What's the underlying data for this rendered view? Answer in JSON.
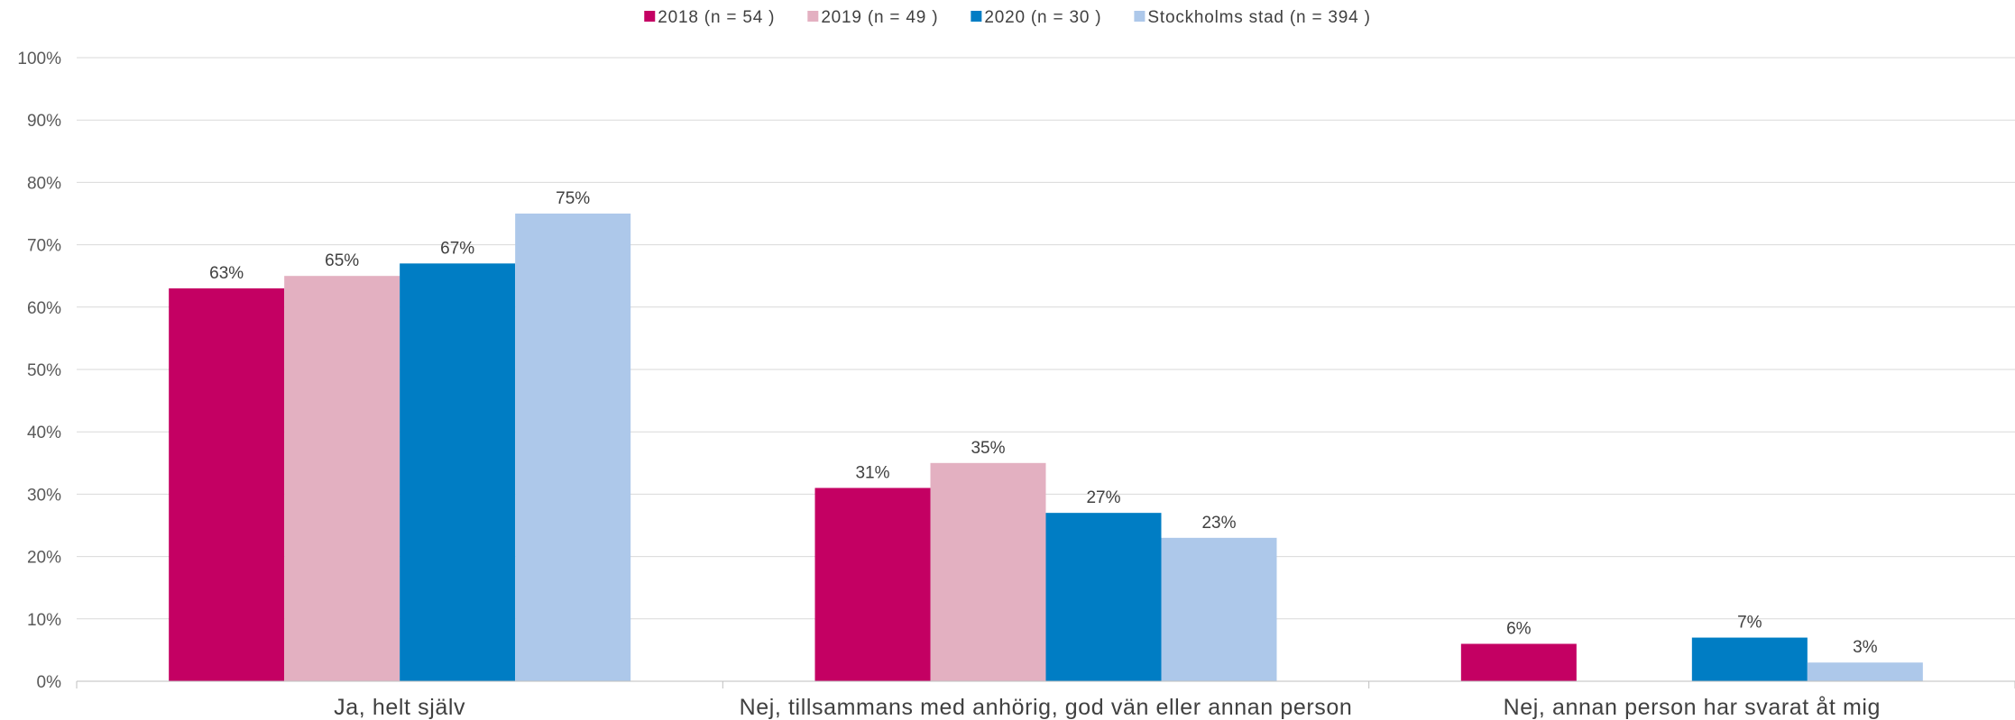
{
  "chart_data": {
    "type": "bar",
    "categories": [
      "Ja, helt själv",
      "Nej, tillsammans med anhörig, god vän eller annan person",
      "Nej, annan person har svarat åt mig"
    ],
    "series": [
      {
        "name": "2018 (n = 54 )",
        "color": "#c40063",
        "values": [
          63,
          31,
          6
        ],
        "labels": [
          "63%",
          "31%",
          "6%"
        ]
      },
      {
        "name": "2019 (n = 49 )",
        "color": "#e3b0c1",
        "values": [
          65,
          35,
          null
        ],
        "labels": [
          "65%",
          "35%",
          ""
        ]
      },
      {
        "name": "2020 (n = 30 )",
        "color": "#007dc4",
        "values": [
          67,
          27,
          7
        ],
        "labels": [
          "67%",
          "27%",
          "7%"
        ]
      },
      {
        "name": "Stockholms stad (n = 394 )",
        "color": "#adc8ea",
        "values": [
          75,
          23,
          3
        ],
        "labels": [
          "75%",
          "23%",
          "3%"
        ]
      }
    ],
    "y_ticks": [
      "0%",
      "10%",
      "20%",
      "30%",
      "40%",
      "50%",
      "60%",
      "70%",
      "80%",
      "90%",
      "100%"
    ],
    "ylim": [
      0,
      100
    ],
    "grid": true,
    "legend": "top-center",
    "title": "",
    "xlabel": "",
    "ylabel": ""
  }
}
